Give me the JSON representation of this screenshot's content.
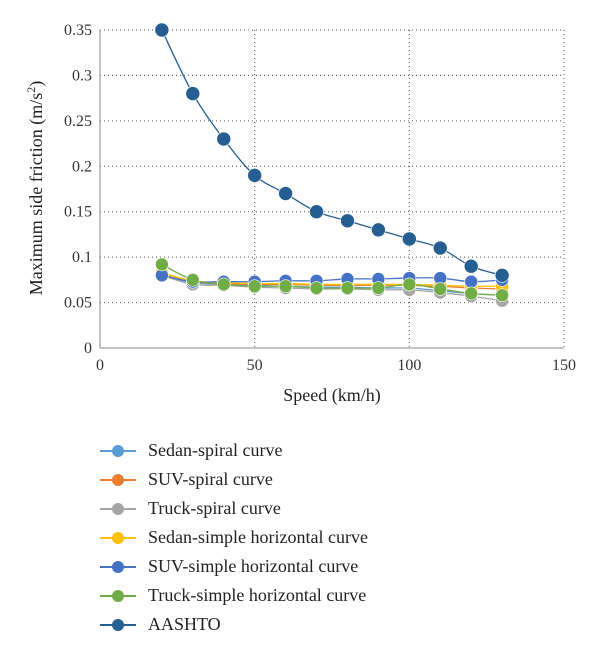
{
  "chart_data": {
    "type": "line",
    "xlabel": "Speed (km/h)",
    "ylabel_main": "Maximum side friction (m/s",
    "ylabel_sup": "2",
    "ylabel_end": ")",
    "xlim": [
      0,
      150
    ],
    "ylim": [
      0,
      0.35
    ],
    "xticks": [
      0,
      50,
      100,
      150
    ],
    "yticks": [
      0,
      0.05,
      0.1,
      0.15,
      0.2,
      0.25,
      0.3,
      0.35
    ],
    "ytick_labels": [
      "0",
      "0.05",
      "0.1",
      "0.15",
      "0.2",
      "0.25",
      "0.3",
      "0.35"
    ],
    "grid": true,
    "legend_position": "bottom",
    "x": [
      20,
      30,
      40,
      50,
      60,
      70,
      80,
      90,
      100,
      110,
      120,
      130
    ],
    "series": [
      {
        "name": "Sedan-spiral curve",
        "color": "#5b9bd5",
        "values": [
          0.08,
          0.072,
          0.07,
          0.069,
          0.068,
          0.067,
          0.067,
          0.066,
          0.066,
          0.063,
          0.06,
          0.058
        ]
      },
      {
        "name": "SUV-spiral curve",
        "color": "#ed7d31",
        "values": [
          0.081,
          0.073,
          0.071,
          0.07,
          0.07,
          0.069,
          0.069,
          0.069,
          0.069,
          0.068,
          0.066,
          0.065
        ]
      },
      {
        "name": "Truck-spiral curve",
        "color": "#a5a5a5",
        "values": [
          0.08,
          0.07,
          0.069,
          0.067,
          0.066,
          0.065,
          0.065,
          0.064,
          0.064,
          0.061,
          0.057,
          0.052
        ]
      },
      {
        "name": "Sedan-simple horizontal curve",
        "color": "#ffc000",
        "values": [
          0.083,
          0.074,
          0.072,
          0.071,
          0.071,
          0.07,
          0.07,
          0.07,
          0.07,
          0.069,
          0.068,
          0.068
        ]
      },
      {
        "name": "SUV-simple horizontal curve",
        "color": "#4472c4",
        "values": [
          0.08,
          0.073,
          0.073,
          0.073,
          0.074,
          0.074,
          0.076,
          0.076,
          0.077,
          0.077,
          0.073,
          0.075
        ]
      },
      {
        "name": "Truck-simple horizontal curve",
        "color": "#70ad47",
        "values": [
          0.092,
          0.075,
          0.07,
          0.068,
          0.068,
          0.066,
          0.066,
          0.066,
          0.07,
          0.065,
          0.06,
          0.058
        ]
      },
      {
        "name": "AASHTO",
        "color": "#255e91",
        "values": [
          0.35,
          0.28,
          0.23,
          0.19,
          0.17,
          0.15,
          0.14,
          0.13,
          0.12,
          0.11,
          0.09,
          0.08
        ]
      }
    ]
  }
}
